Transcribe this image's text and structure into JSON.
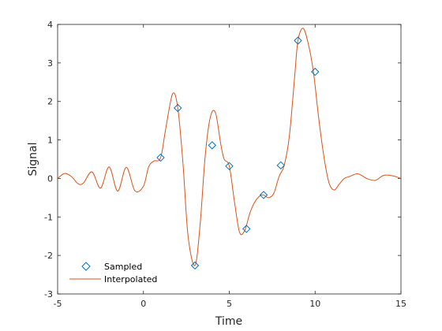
{
  "chart_data": {
    "type": "line",
    "title": "",
    "xlabel": "Time",
    "ylabel": "Signal",
    "xlim": [
      -5,
      15
    ],
    "ylim": [
      -3,
      4
    ],
    "xticks": [
      -5,
      0,
      5,
      10,
      15
    ],
    "xtick_labels": [
      "-5",
      "0",
      "5",
      "10",
      "15"
    ],
    "yticks": [
      -3,
      -2,
      -1,
      0,
      1,
      2,
      3,
      4
    ],
    "ytick_labels": [
      "-3",
      "-2",
      "-1",
      "0",
      "1",
      "2",
      "3",
      "4"
    ],
    "grid": false,
    "legend_position": "bottom-left",
    "series": [
      {
        "name": "Sampled",
        "kind": "markers",
        "marker": "diamond",
        "color": "#0072BD",
        "x": [
          1,
          2,
          3,
          4,
          5,
          6,
          7,
          8,
          9,
          10
        ],
        "y": [
          0.54,
          1.83,
          -2.26,
          0.86,
          0.32,
          -1.31,
          -0.43,
          0.34,
          3.58,
          2.77
        ]
      },
      {
        "name": "Interpolated",
        "kind": "line",
        "color": "#D95319",
        "x": [
          -5,
          -4.6,
          -4.2,
          -3.8,
          -3.5,
          -3.0,
          -2.5,
          -2.0,
          -1.5,
          -1.0,
          -0.5,
          0.0,
          0.3,
          0.6,
          1.0,
          1.3,
          1.7,
          2.0,
          2.3,
          2.6,
          3.0,
          3.3,
          3.6,
          3.9,
          4.2,
          4.5,
          4.7,
          5.0,
          5.3,
          5.6,
          5.9,
          6.2,
          6.5,
          6.8,
          7.0,
          7.3,
          7.6,
          7.9,
          8.2,
          8.5,
          8.8,
          9.0,
          9.3,
          9.6,
          9.9,
          10.2,
          10.5,
          10.8,
          11.1,
          11.4,
          11.7,
          12.0,
          12.5,
          13.0,
          13.5,
          14.0,
          14.5,
          15.0
        ],
        "y": [
          0.0,
          0.13,
          0.05,
          -0.14,
          -0.12,
          0.17,
          -0.25,
          0.3,
          -0.33,
          0.29,
          -0.32,
          -0.2,
          0.3,
          0.45,
          0.54,
          1.3,
          2.2,
          1.83,
          0.4,
          -1.5,
          -2.26,
          -1.2,
          0.6,
          1.6,
          1.7,
          0.9,
          0.5,
          0.32,
          -0.6,
          -1.4,
          -1.35,
          -0.9,
          -0.6,
          -0.45,
          -0.43,
          -0.5,
          -0.38,
          0.05,
          0.34,
          1.1,
          2.6,
          3.58,
          3.9,
          3.5,
          2.77,
          1.6,
          0.6,
          -0.1,
          -0.3,
          -0.15,
          0.0,
          0.05,
          0.12,
          0.0,
          -0.05,
          0.08,
          0.07,
          0.0
        ]
      }
    ]
  }
}
